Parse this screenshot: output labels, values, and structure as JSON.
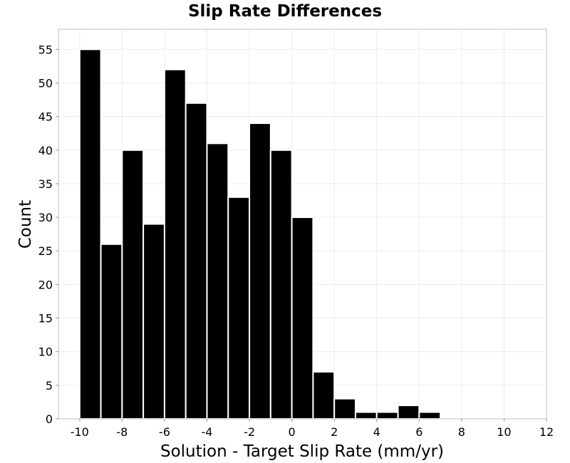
{
  "chart_data": {
    "type": "bar",
    "title": "Slip Rate Differences",
    "xlabel": "Solution - Target Slip Rate (mm/yr)",
    "ylabel": "Count",
    "xlim": [
      -11,
      12
    ],
    "ylim": [
      0,
      58
    ],
    "x_ticks": [
      -10,
      -8,
      -6,
      -4,
      -2,
      0,
      2,
      4,
      6,
      8,
      10,
      12
    ],
    "x_tick_labels": [
      "-10",
      "-8",
      "-6",
      "-4",
      "-2",
      "0",
      "2",
      "4",
      "6",
      "8",
      "10",
      "12"
    ],
    "y_ticks": [
      0,
      5,
      10,
      15,
      20,
      25,
      30,
      35,
      40,
      45,
      50,
      55
    ],
    "y_tick_labels": [
      "0",
      "5",
      "10",
      "15",
      "20",
      "25",
      "30",
      "35",
      "40",
      "45",
      "50",
      "55"
    ],
    "bin_width": 1,
    "bins": [
      {
        "x": -9.5,
        "value": 55
      },
      {
        "x": -8.5,
        "value": 26
      },
      {
        "x": -7.5,
        "value": 40
      },
      {
        "x": -6.5,
        "value": 29
      },
      {
        "x": -5.5,
        "value": 52
      },
      {
        "x": -4.5,
        "value": 47
      },
      {
        "x": -3.5,
        "value": 41
      },
      {
        "x": -2.5,
        "value": 33
      },
      {
        "x": -1.5,
        "value": 44
      },
      {
        "x": -0.5,
        "value": 40
      },
      {
        "x": 0.5,
        "value": 30
      },
      {
        "x": 1.5,
        "value": 7
      },
      {
        "x": 2.5,
        "value": 3
      },
      {
        "x": 3.5,
        "value": 1
      },
      {
        "x": 4.5,
        "value": 1
      },
      {
        "x": 5.5,
        "value": 2
      },
      {
        "x": 6.5,
        "value": 1
      }
    ],
    "grid": true,
    "bar_color": "#000000",
    "bar_edge_color": "#ffffff"
  }
}
